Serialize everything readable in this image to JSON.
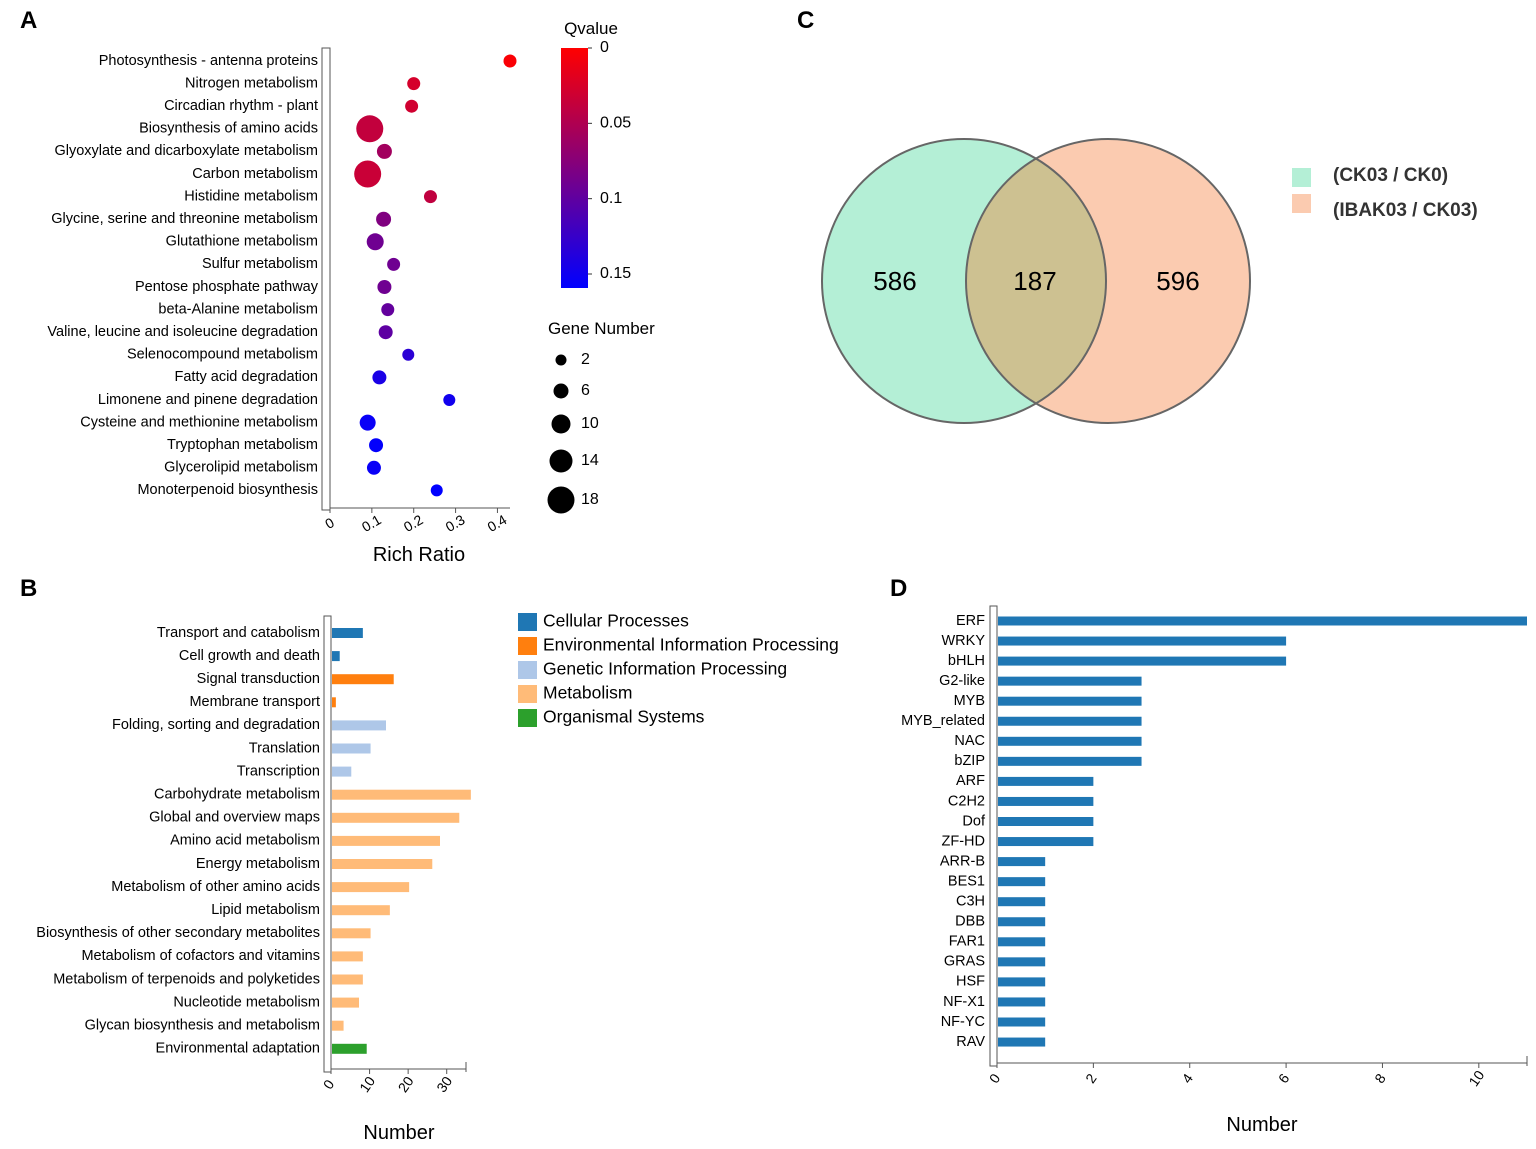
{
  "chart_data": [
    {
      "panel": "A",
      "type": "scatter",
      "title": "",
      "xlabel": "Rich Ratio",
      "ylabel": "",
      "xlim": [
        0,
        0.43
      ],
      "xticks": [
        "0",
        "0.1",
        "0.2",
        "0.3",
        "0.4"
      ],
      "xtick_values": [
        0,
        0.1,
        0.2,
        0.3,
        0.4
      ],
      "categories": [
        "Photosynthesis - antenna proteins",
        "Nitrogen metabolism",
        "Circadian rhythm - plant",
        "Biosynthesis of amino acids",
        "Glyoxylate and dicarboxylate metabolism",
        "Carbon metabolism",
        "Histidine metabolism",
        "Glycine, serine and threonine metabolism",
        "Glutathione metabolism",
        "Sulfur metabolism",
        "Pentose phosphate pathway",
        "beta-Alanine metabolism",
        "Valine, leucine and isoleucine degradation",
        "Selenocompound metabolism",
        "Fatty acid degradation",
        "Limonene and pinene degradation",
        "Cysteine and methionine metabolism",
        "Tryptophan metabolism",
        "Glycerolipid metabolism",
        "Monoterpenoid biosynthesis"
      ],
      "rich_ratio": [
        0.43,
        0.2,
        0.195,
        0.095,
        0.13,
        0.09,
        0.24,
        0.128,
        0.108,
        0.152,
        0.13,
        0.138,
        0.133,
        0.187,
        0.118,
        0.285,
        0.09,
        0.11,
        0.105,
        0.255
      ],
      "qvalue": [
        0.003,
        0.025,
        0.028,
        0.036,
        0.055,
        0.032,
        0.037,
        0.075,
        0.085,
        0.085,
        0.085,
        0.092,
        0.095,
        0.125,
        0.135,
        0.14,
        0.145,
        0.148,
        0.145,
        0.15
      ],
      "gene_number": [
        4,
        4,
        4,
        18,
        6,
        18,
        4,
        6,
        8,
        4,
        5,
        4,
        5,
        3,
        5,
        3,
        7,
        5,
        5,
        3
      ],
      "color_legend": {
        "title": "Qvalue",
        "ticks": [
          "0",
          "0.05",
          "0.1",
          "0.15"
        ],
        "tick_values": [
          0,
          0.05,
          0.1,
          0.15
        ],
        "low_color": "#ff0000",
        "high_color": "#0000ff"
      },
      "size_legend": {
        "title": "Gene Number",
        "labels": [
          "2",
          "6",
          "10",
          "14",
          "18"
        ],
        "values": [
          2,
          6,
          10,
          14,
          18
        ]
      }
    },
    {
      "panel": "B",
      "type": "bar",
      "orientation": "horizontal",
      "title": "",
      "xlabel": "Number",
      "ylabel": "",
      "xlim": [
        0,
        35
      ],
      "xticks": [
        "0",
        "10",
        "20",
        "30"
      ],
      "xtick_values": [
        0,
        10,
        20,
        30
      ],
      "categories": [
        "Transport and catabolism",
        "Cell growth and death",
        "Signal transduction",
        "Membrane transport",
        "Folding, sorting and degradation",
        "Translation",
        "Transcription",
        "Carbohydrate metabolism",
        "Global and overview maps",
        "Amino acid metabolism",
        "Energy metabolism",
        "Metabolism of other amino acids",
        "Lipid metabolism",
        "Biosynthesis of other secondary metabolites",
        "Metabolism of cofactors and vitamins",
        "Metabolism of terpenoids and polyketides",
        "Nucleotide metabolism",
        "Glycan biosynthesis and metabolism",
        "Environmental adaptation"
      ],
      "values": [
        8,
        2,
        16,
        1,
        14,
        10,
        5,
        36,
        33,
        28,
        26,
        20,
        15,
        10,
        8,
        8,
        7,
        3,
        9
      ],
      "groups": [
        0,
        0,
        1,
        1,
        2,
        2,
        2,
        3,
        3,
        3,
        3,
        3,
        3,
        3,
        3,
        3,
        3,
        3,
        4
      ],
      "legend": [
        {
          "label": "Cellular Processes",
          "color": "#1f77b4"
        },
        {
          "label": "Environmental Information Processing",
          "color": "#ff7f0e"
        },
        {
          "label": "Genetic Information Processing",
          "color": "#aec7e8"
        },
        {
          "label": "Metabolism",
          "color": "#ffbb78"
        },
        {
          "label": "Organismal Systems",
          "color": "#2ca02c"
        }
      ]
    },
    {
      "panel": "C",
      "type": "venn",
      "title": "",
      "sets": [
        {
          "label": "(CK03 / CK0)",
          "color": "#b4efd6",
          "only": "586"
        },
        {
          "label": "(IBAK03 / CK03)",
          "color": "#fbcbb0",
          "only": "596"
        }
      ],
      "intersection": "187",
      "intersection_color": "#cdc191"
    },
    {
      "panel": "D",
      "type": "bar",
      "orientation": "horizontal",
      "title": "",
      "xlabel": "Number",
      "ylabel": "",
      "xlim": [
        0,
        11
      ],
      "xticks": [
        "0",
        "2",
        "4",
        "6",
        "8",
        "10"
      ],
      "xtick_values": [
        0,
        2,
        4,
        6,
        8,
        10
      ],
      "categories": [
        "ERF",
        "WRKY",
        "bHLH",
        "G2-like",
        "MYB",
        "MYB_related",
        "NAC",
        "bZIP",
        "ARF",
        "C2H2",
        "Dof",
        "ZF-HD",
        "ARR-B",
        "BES1",
        "C3H",
        "DBB",
        "FAR1",
        "GRAS",
        "HSF",
        "NF-X1",
        "NF-YC",
        "RAV"
      ],
      "values": [
        11,
        6,
        6,
        3,
        3,
        3,
        3,
        3,
        2,
        2,
        2,
        2,
        1,
        1,
        1,
        1,
        1,
        1,
        1,
        1,
        1,
        1
      ],
      "bar_color": "#1f77b4"
    }
  ],
  "panel_labels": {
    "a": "A",
    "b": "B",
    "c": "C",
    "d": "D"
  }
}
